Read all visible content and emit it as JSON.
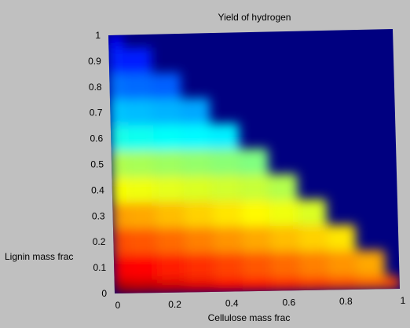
{
  "chart_data": {
    "type": "heatmap",
    "title": "Yield of hydrogen",
    "xlabel": "Cellulose mass frac",
    "ylabel": "Lignin mass frac",
    "xlim": [
      0,
      1
    ],
    "ylim": [
      0,
      1
    ],
    "x_ticks": [
      "0",
      "0.2",
      "0.4",
      "0.6",
      "0.8",
      "1"
    ],
    "y_ticks": [
      "0",
      "0.1",
      "0.2",
      "0.3",
      "0.4",
      "0.5",
      "0.6",
      "0.7",
      "0.8",
      "0.9",
      "1"
    ],
    "grid": false,
    "colormap": "jet",
    "background_color": "#c0c0c0",
    "out_of_domain_color": "#000080",
    "x": [
      0,
      0.1,
      0.2,
      0.3,
      0.4,
      0.5,
      0.6,
      0.7,
      0.8,
      0.9,
      1.0
    ],
    "y": [
      0,
      0.1,
      0.2,
      0.3,
      0.4,
      0.5,
      0.6,
      0.7,
      0.8,
      0.9,
      1.0
    ],
    "z": [
      [
        0.96,
        0.94,
        0.92,
        0.9,
        0.88,
        0.86,
        0.84,
        0.82,
        0.8,
        0.78,
        0.8
      ],
      [
        0.88,
        0.87,
        0.85,
        0.83,
        0.81,
        0.79,
        0.77,
        0.75,
        0.73,
        0.71,
        null
      ],
      [
        0.8,
        0.79,
        0.77,
        0.75,
        0.73,
        0.71,
        0.69,
        0.67,
        0.65,
        null,
        null
      ],
      [
        0.72,
        0.71,
        0.69,
        0.67,
        0.65,
        0.63,
        0.61,
        0.59,
        null,
        null,
        null
      ],
      [
        0.62,
        0.61,
        0.6,
        0.59,
        0.58,
        0.57,
        0.55,
        null,
        null,
        null,
        null
      ],
      [
        0.55,
        0.54,
        0.53,
        0.52,
        0.51,
        0.5,
        null,
        null,
        null,
        null,
        null
      ],
      [
        0.4,
        0.39,
        0.38,
        0.37,
        0.36,
        null,
        null,
        null,
        null,
        null,
        null
      ],
      [
        0.32,
        0.31,
        0.3,
        0.29,
        null,
        null,
        null,
        null,
        null,
        null,
        null
      ],
      [
        0.24,
        0.23,
        0.22,
        null,
        null,
        null,
        null,
        null,
        null,
        null,
        null
      ],
      [
        0.16,
        0.15,
        null,
        null,
        null,
        null,
        null,
        null,
        null,
        null,
        null
      ],
      [
        0.12,
        null,
        null,
        null,
        null,
        null,
        null,
        null,
        null,
        null,
        null
      ]
    ]
  }
}
